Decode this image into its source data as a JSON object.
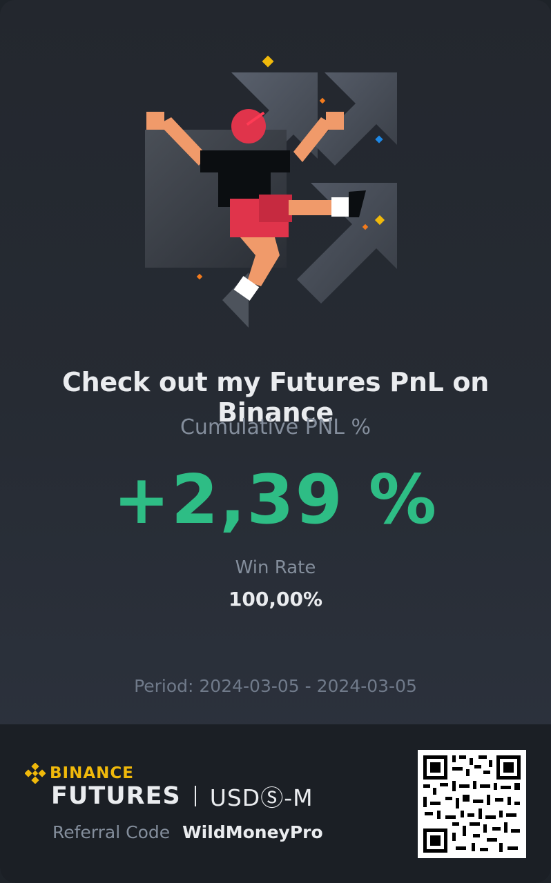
{
  "headline": "Check out my Futures PnL on Binance",
  "subtitle": "Cumulative PNL %",
  "pnl_value": "+2,39 %",
  "win_rate": {
    "label": "Win Rate",
    "value": "100,00%"
  },
  "period": "Period: 2024-03-05 - 2024-03-05",
  "footer": {
    "brand": "BINANCE",
    "product": "FUTURES",
    "market": "USDⓈ-M",
    "referral_label": "Referral Code",
    "referral_code": "WildMoneyPro"
  },
  "colors": {
    "positive": "#2ebd85",
    "brand": "#f0b90b",
    "text_primary": "#eaecef",
    "text_secondary": "#848e9c"
  },
  "icons": [
    "futures-trader-illustration",
    "binance-logo-icon",
    "qr-code-icon"
  ]
}
